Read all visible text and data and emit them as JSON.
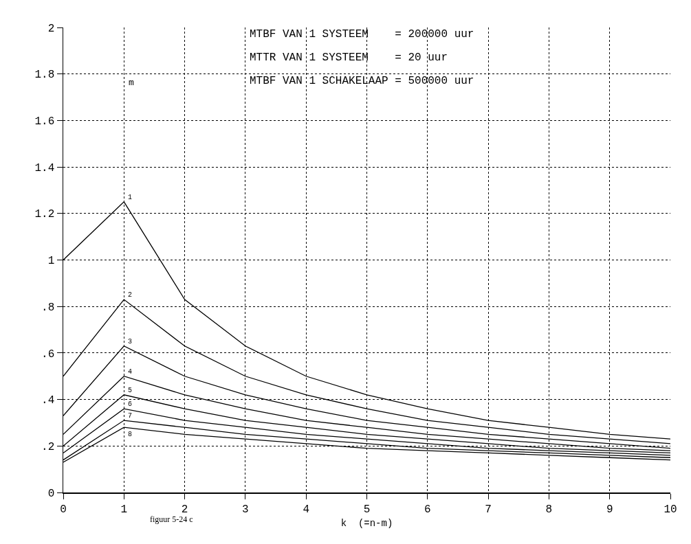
{
  "chart_data": {
    "type": "line",
    "xlabel": "k  (=n-m)",
    "legend_title": "m",
    "annotations": [
      "MTBF VAN 1 SYSTEEM    = 200000 uur",
      "MTTR VAN 1 SYSTEEM    = 20 uur",
      "MTBF VAN 1 SCHAKELAAP = 500000 uur",
      "figuur 5-24 c"
    ],
    "x": [
      0,
      1,
      2,
      3,
      4,
      5,
      6,
      7,
      8,
      9,
      10
    ],
    "series": [
      {
        "name": "1",
        "color": "#000000",
        "values": [
          1,
          1.25,
          0.83,
          0.63,
          0.5,
          0.42,
          0.36,
          0.31,
          0.28,
          0.25,
          0.23
        ]
      },
      {
        "name": "2",
        "color": "#000000",
        "values": [
          0.5,
          0.83,
          0.63,
          0.5,
          0.42,
          0.36,
          0.31,
          0.28,
          0.25,
          0.23,
          0.21
        ]
      },
      {
        "name": "3",
        "color": "#000000",
        "values": [
          0.33,
          0.63,
          0.5,
          0.42,
          0.36,
          0.31,
          0.28,
          0.25,
          0.23,
          0.21,
          0.19
        ]
      },
      {
        "name": "4",
        "color": "#000000",
        "values": [
          0.25,
          0.5,
          0.42,
          0.36,
          0.31,
          0.28,
          0.25,
          0.23,
          0.21,
          0.19,
          0.18
        ]
      },
      {
        "name": "5",
        "color": "#000000",
        "values": [
          0.2,
          0.42,
          0.36,
          0.31,
          0.28,
          0.25,
          0.23,
          0.21,
          0.19,
          0.18,
          0.17
        ]
      },
      {
        "name": "6",
        "color": "#000000",
        "values": [
          0.17,
          0.36,
          0.31,
          0.28,
          0.25,
          0.23,
          0.21,
          0.19,
          0.18,
          0.17,
          0.16
        ]
      },
      {
        "name": "7",
        "color": "#000000",
        "values": [
          0.14,
          0.31,
          0.28,
          0.25,
          0.23,
          0.21,
          0.19,
          0.18,
          0.17,
          0.16,
          0.15
        ]
      },
      {
        "name": "8",
        "color": "#000000",
        "values": [
          0.13,
          0.28,
          0.25,
          0.23,
          0.21,
          0.19,
          0.18,
          0.17,
          0.16,
          0.15,
          0.14
        ]
      }
    ],
    "xlim": [
      0,
      10
    ],
    "xticks": [
      0,
      1,
      2,
      3,
      4,
      5,
      6,
      7,
      8,
      9,
      10
    ],
    "ylim": [
      0,
      2
    ],
    "yticks": [
      0,
      {
        "value": 0.2,
        "label": ".2"
      },
      {
        "value": 0.4,
        "label": ".4"
      },
      {
        "value": 0.6,
        "label": ".6"
      },
      {
        "value": 0.8,
        "label": ".8"
      },
      1,
      1.2,
      1.4,
      1.6,
      1.8,
      2
    ],
    "grid": true,
    "legend": false,
    "marker": "none",
    "line_style": "solid"
  }
}
